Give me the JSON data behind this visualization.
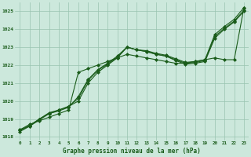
{
  "title": "Graphe pression niveau de la mer (hPa)",
  "bg_color": "#cce8dc",
  "grid_color": "#99c4b0",
  "line_color": "#1a5c1a",
  "marker_color": "#1a5c1a",
  "x_labels": [
    "0",
    "1",
    "2",
    "3",
    "4",
    "5",
    "6",
    "7",
    "8",
    "9",
    "10",
    "11",
    "12",
    "13",
    "14",
    "15",
    "16",
    "17",
    "18",
    "19",
    "20",
    "21",
    "22",
    "23"
  ],
  "ylim": [
    1017.8,
    1025.5
  ],
  "yticks": [
    1018,
    1019,
    1020,
    1021,
    1022,
    1023,
    1024,
    1025
  ],
  "series": [
    [
      1018.4,
      1018.7,
      1018.9,
      1019.1,
      1019.3,
      1019.5,
      1021.6,
      1021.8,
      1022.0,
      1022.2,
      1022.4,
      1022.6,
      1022.5,
      1022.4,
      1022.3,
      1022.2,
      1022.1,
      1022.1,
      1022.2,
      1022.3,
      1022.4,
      1022.3,
      1022.3,
      1025.2
    ],
    [
      1018.4,
      1018.6,
      1019.0,
      1019.3,
      1019.5,
      1019.7,
      1020.0,
      1021.0,
      1021.6,
      1022.0,
      1022.4,
      1023.0,
      1022.85,
      1022.8,
      1022.65,
      1022.55,
      1022.35,
      1022.15,
      1022.2,
      1022.3,
      1023.7,
      1024.15,
      1024.55,
      1025.2
    ],
    [
      1018.35,
      1018.65,
      1019.0,
      1019.35,
      1019.5,
      1019.7,
      1020.15,
      1021.15,
      1021.7,
      1022.05,
      1022.45,
      1023.0,
      1022.85,
      1022.75,
      1022.6,
      1022.5,
      1022.3,
      1022.1,
      1022.15,
      1022.25,
      1023.6,
      1024.05,
      1024.45,
      1025.05
    ],
    [
      1018.3,
      1018.6,
      1018.95,
      1019.3,
      1019.45,
      1019.65,
      1020.25,
      1021.2,
      1021.75,
      1022.1,
      1022.5,
      1023.0,
      1022.85,
      1022.75,
      1022.6,
      1022.5,
      1022.25,
      1022.05,
      1022.1,
      1022.2,
      1023.5,
      1024.0,
      1024.4,
      1025.0
    ]
  ]
}
